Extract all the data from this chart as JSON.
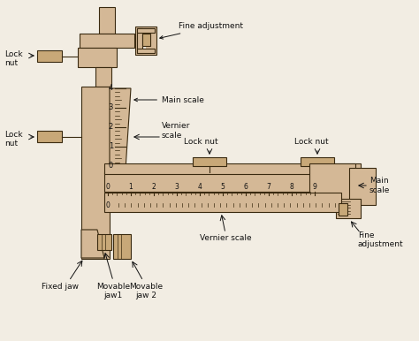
{
  "bg_color": "#f2ede3",
  "tan_fill": "#d4b896",
  "tan_med": "#c8a878",
  "tan_dark": "#7a5c30",
  "outline": "#3a2a10",
  "text_color": "#111111",
  "figsize": [
    4.74,
    3.86
  ],
  "dpi": 100,
  "labels": {
    "fine_adj_top": "Fine adjustment",
    "main_scale_v": "Main scale",
    "vernier_scale_v": "Vernier\nscale",
    "lock_nut_tl": "Lock\nnut",
    "lock_nut_ml": "Lock\nnut",
    "lock_nut_h1": "Lock nut",
    "lock_nut_h2": "Lock nut",
    "main_scale_h": "Main\nscale",
    "vernier_scale_h": "Vernier scale",
    "fine_adj_bot": "Fine\nadjustment",
    "fixed_jaw": "Fixed jaw",
    "movable_jaw1": "Movable\njaw1",
    "movable_jaw2": "Movable\njaw 2"
  }
}
